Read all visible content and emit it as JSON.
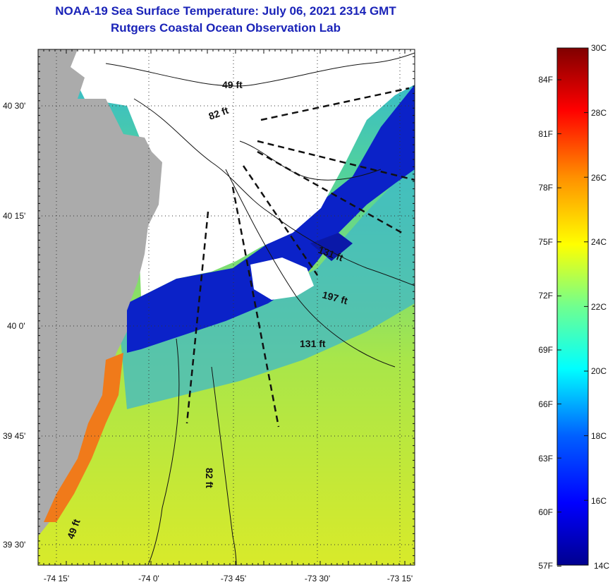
{
  "title_line1": "NOAA-19 Sea Surface Temperature:  July 06, 2021 2314 GMT",
  "title_line2": "Rutgers Coastal Ocean Observation Lab",
  "lat_ticks": [
    "40 30'",
    "40 15'",
    "40 0'",
    "39 45'",
    "39 30'"
  ],
  "lon_ticks": [
    "-74 15'",
    "-74 0'",
    "-73 45'",
    "-73 30'",
    "-73 15'"
  ],
  "depth_labels": {
    "d49_top": "49 ft",
    "d82_top": "82 ft",
    "d131_a": "131 ft",
    "d197": "197 ft",
    "d131_b": "131 ft",
    "d82_bottom": "82 ft",
    "d49_bottom": "49 ft"
  },
  "colorbar": {
    "celsius": [
      "30C",
      "28C",
      "26C",
      "24C",
      "22C",
      "20C",
      "18C",
      "16C",
      "14C"
    ],
    "fahrenheit": [
      "84F",
      "81F",
      "78F",
      "75F",
      "72F",
      "69F",
      "66F",
      "63F",
      "60F",
      "57F"
    ],
    "colors": [
      "#7f0000",
      "#ff0000",
      "#ff9900",
      "#ffff00",
      "#7fff7f",
      "#00ffff",
      "#0080ff",
      "#0000ff",
      "#00008f"
    ]
  },
  "map_colors": {
    "land": "#ababab",
    "cloud": "#ffffff",
    "cold_water": "#0a1fc8",
    "mid_water": "#37a6d9",
    "warm_water": "#c9e838",
    "hot_coast": "#f07a1a"
  }
}
